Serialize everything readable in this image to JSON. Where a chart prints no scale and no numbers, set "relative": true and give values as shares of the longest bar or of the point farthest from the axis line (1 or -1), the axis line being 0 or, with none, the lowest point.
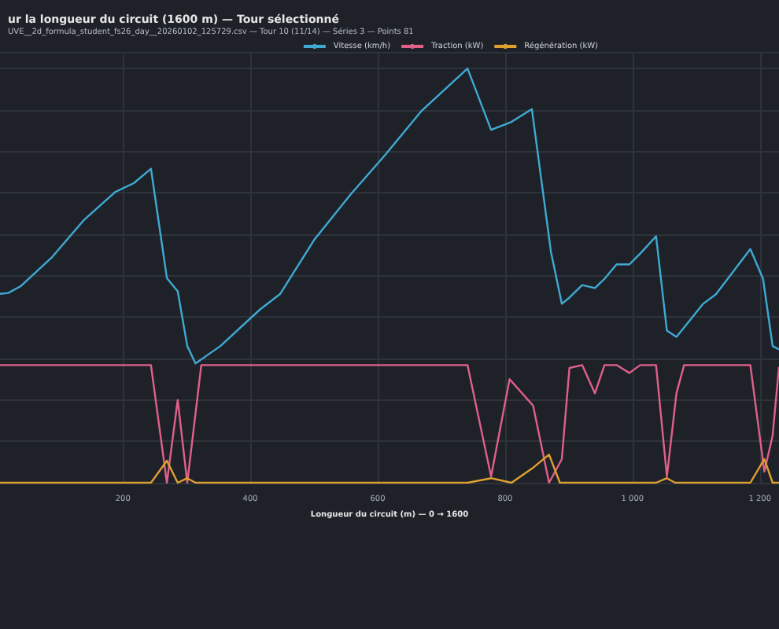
{
  "chart_data": {
    "type": "line",
    "title": "ur la longueur du circuit (1600 m) — Tour sélectionné",
    "subtitle": "UVE__2d_formula_student_fs26_day__20260102_125729.csv — Tour 10 (11/14) — Séries 3 — Points 81",
    "xlabel": "Longueur du circuit (m) — 0 → 1600",
    "relative": true,
    "grid": true,
    "legend": "top right",
    "marker": "none",
    "xlim": [
      7,
      1230
    ],
    "xticks": [
      200,
      400,
      600,
      800,
      {
        "value": 1000,
        "label": "1 000"
      },
      {
        "value": 1200,
        "label": "1 200"
      }
    ],
    "series": [
      {
        "name": "Vitesse (km/h)",
        "color": "#3fa9d4",
        "x": [
          7,
          20,
          40,
          89,
          138,
          188,
          217,
          244,
          269,
          286,
          301,
          314,
          353,
          415,
          447,
          501,
          558,
          612,
          669,
          741,
          778,
          810,
          842,
          872,
          889,
          901,
          921,
          941,
          956,
          975,
          995,
          1012,
          1037,
          1054,
          1069,
          1081,
          1111,
          1131,
          1185,
          1205,
          1220,
          1230
        ],
        "values": [
          0.456,
          0.458,
          0.475,
          0.545,
          0.633,
          0.702,
          0.723,
          0.758,
          0.494,
          0.462,
          0.33,
          0.288,
          0.33,
          0.418,
          0.456,
          0.588,
          0.697,
          0.792,
          0.898,
          1.0,
          0.852,
          0.871,
          0.902,
          0.557,
          0.432,
          0.447,
          0.477,
          0.47,
          0.492,
          0.527,
          0.527,
          0.553,
          0.595,
          0.367,
          0.352,
          0.375,
          0.432,
          0.455,
          0.564,
          0.492,
          0.33,
          0.322
        ]
      },
      {
        "name": "Traction (kW)",
        "color": "#e0608a",
        "x": [
          7,
          244,
          269,
          286,
          301,
          323,
          741,
          778,
          807,
          844,
          869,
          889,
          901,
          921,
          941,
          956,
          975,
          995,
          1012,
          1037,
          1054,
          1069,
          1081,
          1185,
          1207,
          1220,
          1230
        ],
        "values": [
          0.284,
          0.284,
          0,
          0.2,
          0,
          0.284,
          0.284,
          0.015,
          0.25,
          0.186,
          0,
          0.057,
          0.277,
          0.284,
          0.216,
          0.284,
          0.284,
          0.265,
          0.284,
          0.284,
          0.015,
          0.216,
          0.284,
          0.284,
          0.027,
          0.114,
          0.28
        ]
      },
      {
        "name": "Régénération (kW)",
        "color": "#e0a030",
        "x": [
          7,
          244,
          269,
          286,
          301,
          314,
          741,
          778,
          810,
          842,
          869,
          886,
          1037,
          1054,
          1067,
          1185,
          1207,
          1220,
          1230
        ],
        "values": [
          0,
          0,
          0.053,
          0,
          0.011,
          0,
          0,
          0.011,
          0,
          0.034,
          0.068,
          0,
          0,
          0.011,
          0,
          0,
          0.057,
          0,
          0
        ]
      }
    ]
  }
}
